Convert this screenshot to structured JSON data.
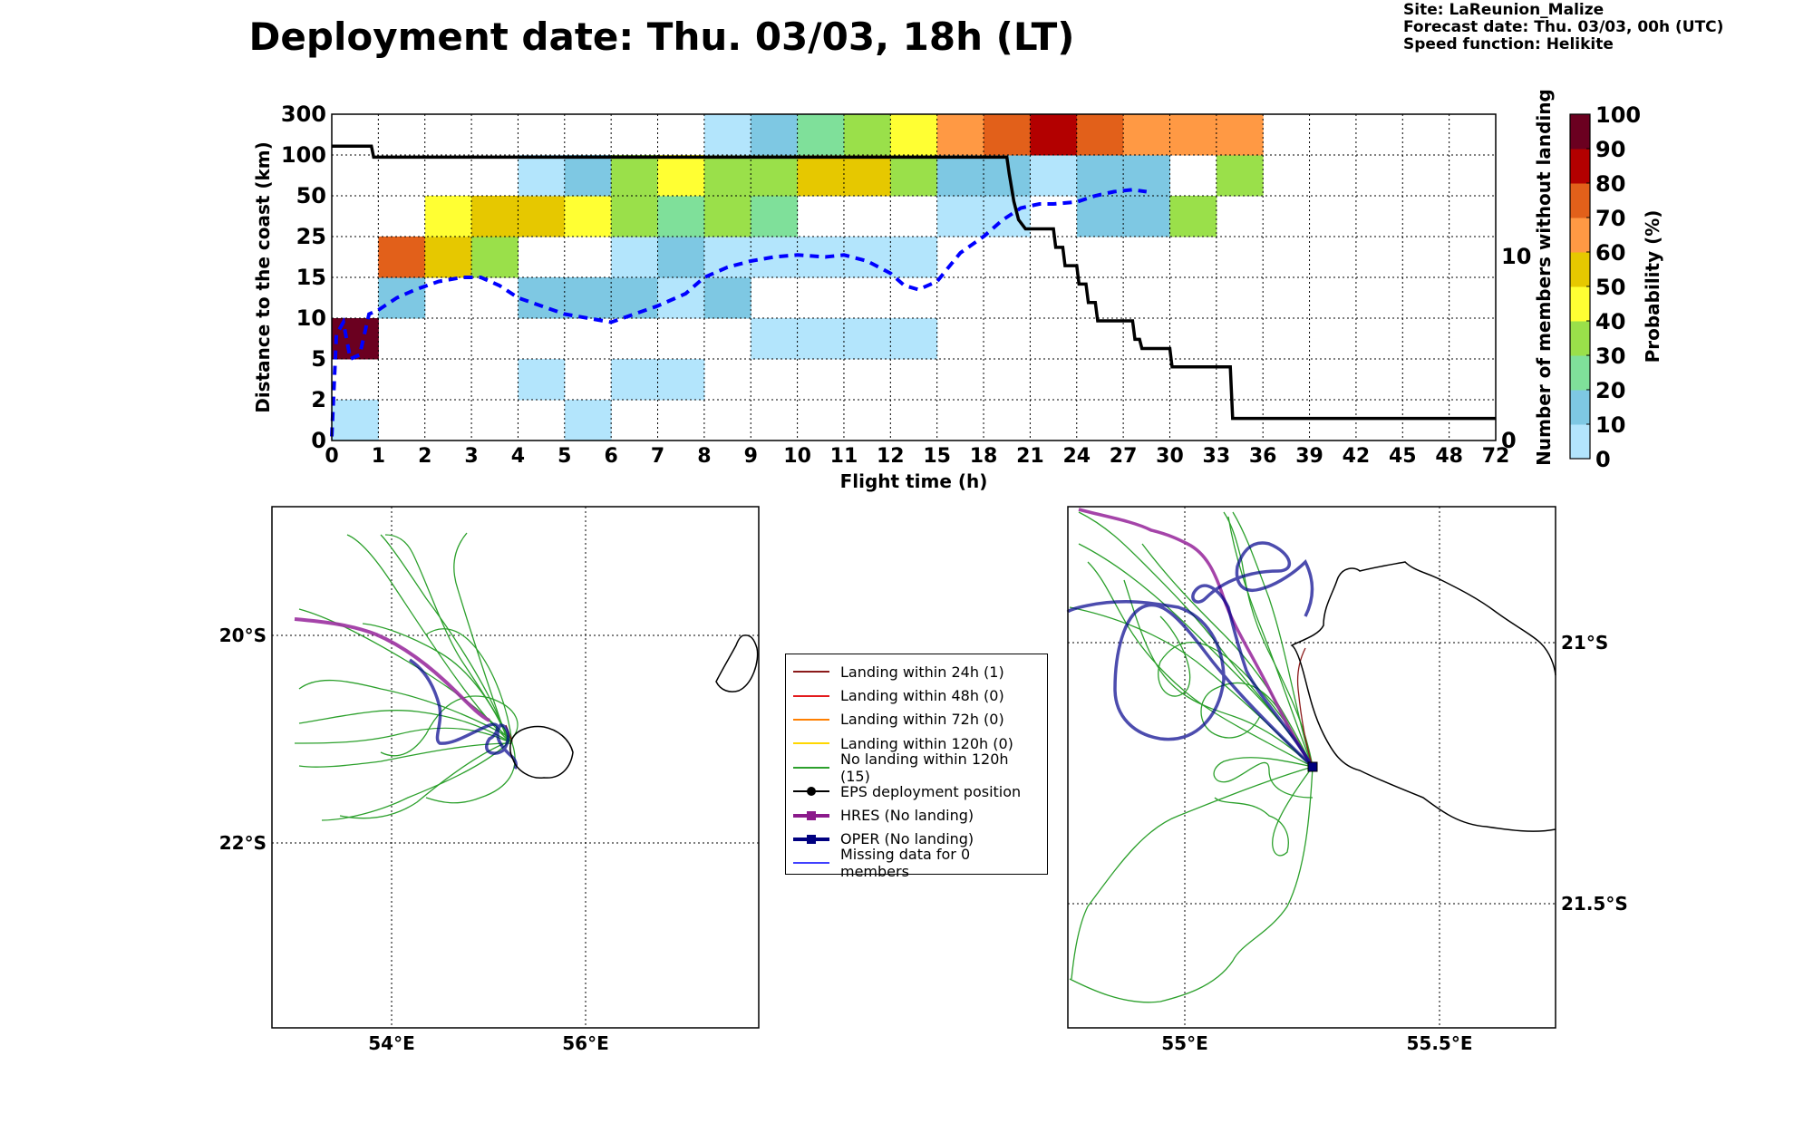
{
  "title": "Deployment date: Thu. 03/03, 18h (LT)",
  "info": {
    "site": "Site: LaReunion_Malize",
    "forecast": "Forecast date: Thu. 03/03, 00h (UTC)",
    "speed": "Speed function: Helikite"
  },
  "colors": {
    "prob": [
      "#b3e5fc",
      "#7ec8e3",
      "#7fe09a",
      "#9ae04a",
      "#ffff33",
      "#e6c800",
      "#ff9944",
      "#e2601a",
      "#b30000",
      "#6b0020"
    ],
    "eps_mean": "#0000ff",
    "members_line": "#000000",
    "landing24": "#8b1a1a",
    "landing48": "#e31a1c",
    "landing72": "#ff7f00",
    "landing120": "#ffd700",
    "no_landing": "#2ca02c",
    "hres": "#8b1a8b",
    "oper": "#000080",
    "missing": "#4040ff"
  },
  "chart_data": [
    {
      "type": "heatmap",
      "xlabel": "Flight time (h)",
      "ylabel": "Distance to the coast (km)",
      "ylabel_right": "Number of members without landing",
      "x_ticks": [
        "0",
        "1",
        "2",
        "3",
        "4",
        "5",
        "6",
        "7",
        "8",
        "9",
        "10",
        "11",
        "12",
        "15",
        "18",
        "21",
        "24",
        "27",
        "30",
        "33",
        "36",
        "39",
        "42",
        "45",
        "48",
        "72"
      ],
      "y_ticks": [
        "0",
        "2",
        "5",
        "10",
        "15",
        "25",
        "50",
        "100",
        "300"
      ],
      "y_right_ticks": [
        "0",
        "10"
      ],
      "colorbar": {
        "label": "Probability (%)",
        "ticks": [
          "0",
          "10",
          "20",
          "30",
          "40",
          "50",
          "60",
          "70",
          "80",
          "90",
          "100"
        ]
      },
      "grid": true,
      "cells": [
        [
          0,
          0,
          0
        ],
        [
          0,
          2,
          9
        ],
        [
          1,
          3,
          1
        ],
        [
          1,
          4,
          7
        ],
        [
          2,
          4,
          5
        ],
        [
          2,
          5,
          4
        ],
        [
          3,
          4,
          3
        ],
        [
          3,
          5,
          5
        ],
        [
          4,
          1,
          0
        ],
        [
          4,
          3,
          1
        ],
        [
          4,
          5,
          5
        ],
        [
          4,
          6,
          0
        ],
        [
          5,
          0,
          0
        ],
        [
          5,
          3,
          1
        ],
        [
          5,
          5,
          4
        ],
        [
          5,
          6,
          1
        ],
        [
          6,
          1,
          0
        ],
        [
          6,
          3,
          1
        ],
        [
          6,
          4,
          0
        ],
        [
          6,
          5,
          3
        ],
        [
          6,
          6,
          3
        ],
        [
          7,
          1,
          0
        ],
        [
          7,
          3,
          0
        ],
        [
          7,
          4,
          1
        ],
        [
          7,
          5,
          2
        ],
        [
          7,
          6,
          4
        ],
        [
          8,
          3,
          1
        ],
        [
          8,
          4,
          0
        ],
        [
          8,
          5,
          3
        ],
        [
          8,
          6,
          3
        ],
        [
          8,
          7,
          0
        ],
        [
          9,
          2,
          0
        ],
        [
          9,
          4,
          0
        ],
        [
          9,
          5,
          2
        ],
        [
          9,
          6,
          3
        ],
        [
          9,
          7,
          1
        ],
        [
          10,
          2,
          0
        ],
        [
          10,
          4,
          0
        ],
        [
          10,
          6,
          5
        ],
        [
          10,
          7,
          2
        ],
        [
          11,
          2,
          0
        ],
        [
          11,
          4,
          0
        ],
        [
          11,
          6,
          5
        ],
        [
          11,
          7,
          3
        ],
        [
          12,
          2,
          0
        ],
        [
          12,
          4,
          0
        ],
        [
          12,
          6,
          3
        ],
        [
          12,
          7,
          4
        ],
        [
          13,
          5,
          0
        ],
        [
          13,
          6,
          1
        ],
        [
          13,
          7,
          6
        ],
        [
          14,
          5,
          0
        ],
        [
          14,
          6,
          1
        ],
        [
          14,
          7,
          7
        ],
        [
          15,
          6,
          0
        ],
        [
          15,
          7,
          8
        ],
        [
          16,
          5,
          1
        ],
        [
          16,
          6,
          1
        ],
        [
          16,
          7,
          7
        ],
        [
          17,
          5,
          1
        ],
        [
          17,
          6,
          1
        ],
        [
          17,
          7,
          6
        ],
        [
          18,
          5,
          3
        ],
        [
          18,
          7,
          6
        ],
        [
          19,
          6,
          3
        ],
        [
          19,
          7,
          6
        ]
      ],
      "eps_mean_line": {
        "label": "EPS mean distance (dashed)",
        "points": [
          [
            0,
            0.1
          ],
          [
            0.1,
            2.6
          ],
          [
            0.25,
            2.9
          ],
          [
            0.4,
            2.0
          ],
          [
            0.6,
            2.1
          ],
          [
            0.8,
            3.1
          ],
          [
            1,
            3.2
          ],
          [
            1.4,
            3.5
          ],
          [
            1.8,
            3.7
          ],
          [
            2.3,
            3.9
          ],
          [
            2.8,
            4.0
          ],
          [
            3.2,
            4.0
          ],
          [
            3.6,
            3.8
          ],
          [
            4,
            3.5
          ],
          [
            4.5,
            3.3
          ],
          [
            5,
            3.1
          ],
          [
            5.5,
            3.0
          ],
          [
            6,
            2.9
          ],
          [
            6.5,
            3.1
          ],
          [
            7,
            3.3
          ],
          [
            7.6,
            3.6
          ],
          [
            8,
            4.0
          ],
          [
            8.5,
            4.25
          ],
          [
            9,
            4.4
          ],
          [
            9.5,
            4.5
          ],
          [
            10,
            4.55
          ],
          [
            10.6,
            4.5
          ],
          [
            11,
            4.55
          ],
          [
            11.5,
            4.4
          ],
          [
            12,
            4.1
          ],
          [
            12.3,
            3.8
          ],
          [
            12.6,
            3.7
          ],
          [
            13,
            3.9
          ],
          [
            13.5,
            4.6
          ],
          [
            14,
            5.0
          ],
          [
            14.4,
            5.4
          ],
          [
            14.8,
            5.7
          ],
          [
            15.2,
            5.8
          ],
          [
            15.5,
            5.8
          ],
          [
            16,
            5.85
          ],
          [
            16.4,
            6.0
          ],
          [
            16.8,
            6.1
          ],
          [
            17.2,
            6.15
          ],
          [
            17.5,
            6.1
          ]
        ]
      },
      "members_line": {
        "label": "Number of members without landing",
        "steps": [
          [
            0,
            16
          ],
          [
            0.85,
            16
          ],
          [
            0.9,
            15.4
          ],
          [
            14.5,
            15.4
          ],
          [
            14.55,
            14.5
          ],
          [
            14.65,
            13
          ],
          [
            14.75,
            12
          ],
          [
            14.9,
            11.5
          ],
          [
            15.5,
            11.5
          ],
          [
            15.55,
            10.5
          ],
          [
            15.7,
            10.5
          ],
          [
            15.75,
            9.5
          ],
          [
            16,
            9.5
          ],
          [
            16.05,
            8.5
          ],
          [
            16.2,
            8.5
          ],
          [
            16.25,
            7.5
          ],
          [
            16.4,
            7.5
          ],
          [
            16.45,
            6.5
          ],
          [
            17.2,
            6.5
          ],
          [
            17.25,
            5.5
          ],
          [
            17.35,
            5.5
          ],
          [
            17.4,
            5
          ],
          [
            18,
            5
          ],
          [
            18.05,
            4
          ],
          [
            19.3,
            4
          ],
          [
            19.35,
            1.2
          ],
          [
            25,
            1.2
          ]
        ]
      }
    },
    {
      "type": "scatter",
      "name": "map-regional",
      "x_ticks": [
        "54°E",
        "56°E"
      ],
      "y_ticks": [
        "20°S",
        "22°S"
      ]
    },
    {
      "type": "scatter",
      "name": "map-zoom",
      "x_ticks": [
        "55°E",
        "55.5°E"
      ],
      "y_ticks": [
        "21°S",
        "21.5°S"
      ]
    }
  ],
  "legend": [
    {
      "label": "Landing within 24h (1)",
      "color_key": "landing24",
      "marker": "none"
    },
    {
      "label": "Landing within 48h (0)",
      "color_key": "landing48",
      "marker": "none"
    },
    {
      "label": "Landing within 72h (0)",
      "color_key": "landing72",
      "marker": "none"
    },
    {
      "label": "Landing within 120h (0)",
      "color_key": "landing120",
      "marker": "none"
    },
    {
      "label": "No landing within 120h (15)",
      "color_key": "no_landing",
      "marker": "none"
    },
    {
      "label": "EPS deployment position",
      "color_key": "members_line",
      "marker": "circle"
    },
    {
      "label": "HRES (No landing)",
      "color_key": "hres",
      "marker": "square"
    },
    {
      "label": "OPER (No landing)",
      "color_key": "oper",
      "marker": "square"
    },
    {
      "label": "Missing data for 0 members",
      "color_key": "missing",
      "marker": "none"
    }
  ]
}
